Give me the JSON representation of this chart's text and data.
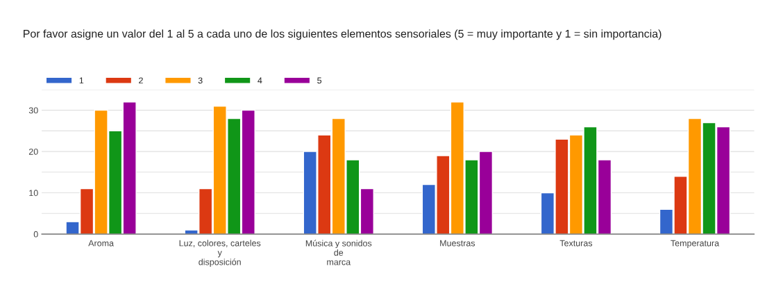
{
  "chart_data": {
    "type": "bar",
    "title": "Por favor asigne un valor del 1 al 5 a cada uno de los siguientes elementos sensoriales (5 = muy importante y 1 = sin importancia)",
    "categories": [
      "Aroma",
      "Luz, colores, carteles y disposición",
      "Música y sonidos de marca",
      "Muestras",
      "Texturas",
      "Temperatura"
    ],
    "series": [
      {
        "name": "1",
        "color": "#3366cc",
        "values": [
          3,
          1,
          20,
          12,
          10,
          6
        ]
      },
      {
        "name": "2",
        "color": "#dc3912",
        "values": [
          11,
          11,
          24,
          19,
          23,
          14
        ]
      },
      {
        "name": "3",
        "color": "#ff9900",
        "values": [
          30,
          31,
          28,
          32,
          24,
          28
        ]
      },
      {
        "name": "4",
        "color": "#109618",
        "values": [
          25,
          28,
          18,
          18,
          26,
          27
        ]
      },
      {
        "name": "5",
        "color": "#990099",
        "values": [
          32,
          30,
          11,
          20,
          18,
          26
        ]
      }
    ],
    "ylim": [
      0,
      35
    ],
    "yticks": [
      0,
      {
        "value": 5,
        "label": null
      },
      10,
      {
        "value": 15,
        "label": null
      },
      20,
      {
        "value": 25,
        "label": null
      },
      30,
      {
        "value": 35,
        "label": null
      }
    ],
    "grid": "y",
    "legend": "top left"
  }
}
